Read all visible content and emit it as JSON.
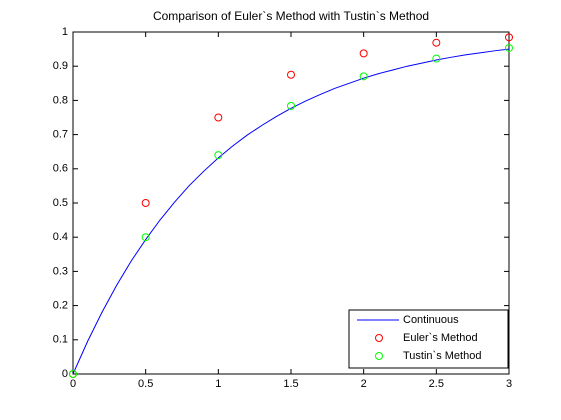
{
  "chart_data": {
    "type": "line",
    "title": "Comparison of Euler`s Method with Tustin`s Method",
    "xlim": [
      0,
      3
    ],
    "ylim": [
      0,
      1
    ],
    "xticks": [
      0,
      0.5,
      1,
      1.5,
      2,
      2.5,
      3
    ],
    "yticks": [
      0,
      0.1,
      0.2,
      0.3,
      0.4,
      0.5,
      0.6,
      0.7,
      0.8,
      0.9,
      1
    ],
    "grid": false,
    "legend": "lower right",
    "series": [
      {
        "name": "Continuous",
        "color": "#0000ff",
        "marker": "none",
        "x": [
          0,
          0.1,
          0.2,
          0.3,
          0.4,
          0.5,
          0.6,
          0.7,
          0.8,
          0.9,
          1,
          1.1,
          1.2,
          1.3,
          1.4,
          1.5,
          1.6,
          1.7,
          1.8,
          1.9,
          2,
          2.1,
          2.2,
          2.3,
          2.4,
          2.5,
          2.6,
          2.7,
          2.8,
          2.9,
          3
        ],
        "values": [
          0,
          0.095,
          0.181,
          0.259,
          0.33,
          0.393,
          0.451,
          0.503,
          0.551,
          0.593,
          0.632,
          0.667,
          0.699,
          0.727,
          0.753,
          0.777,
          0.798,
          0.817,
          0.835,
          0.85,
          0.865,
          0.878,
          0.889,
          0.9,
          0.909,
          0.918,
          0.926,
          0.933,
          0.939,
          0.945,
          0.95
        ]
      },
      {
        "name": "Euler`s Method",
        "color": "#ff0000",
        "marker": "circle",
        "x": [
          0,
          0.5,
          1,
          1.5,
          2,
          2.5,
          3
        ],
        "values": [
          0,
          0.5,
          0.75,
          0.875,
          0.9375,
          0.96875,
          0.984375
        ]
      },
      {
        "name": "Tustin`s Method",
        "color": "#00ff00",
        "marker": "circle",
        "x": [
          0,
          0.5,
          1,
          1.5,
          2,
          2.5,
          3
        ],
        "values": [
          0,
          0.4,
          0.64,
          0.784,
          0.8704,
          0.92224,
          0.953344
        ]
      }
    ]
  }
}
